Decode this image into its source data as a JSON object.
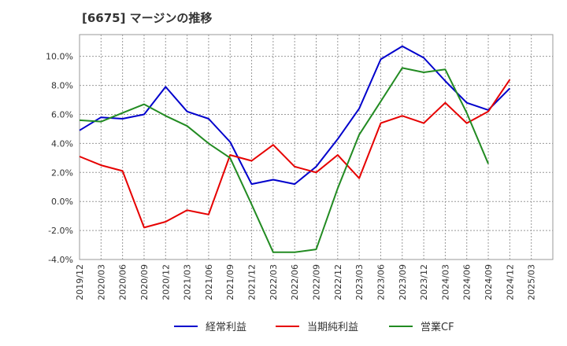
{
  "chart_data": {
    "type": "line",
    "title": "[6675]  マージンの推移",
    "xlabel": "",
    "ylabel": "",
    "x": [
      "2019/12",
      "2020/03",
      "2020/06",
      "2020/09",
      "2020/12",
      "2021/03",
      "2021/06",
      "2021/09",
      "2021/12",
      "2022/03",
      "2022/06",
      "2022/09",
      "2022/12",
      "2023/03",
      "2023/06",
      "2023/09",
      "2023/12",
      "2024/03",
      "2024/06",
      "2024/09",
      "2024/12",
      "2025/03"
    ],
    "y_ticks": [
      "-4.0%",
      "-2.0%",
      "0.0%",
      "2.0%",
      "4.0%",
      "6.0%",
      "8.0%",
      "10.0%"
    ],
    "ylim": [
      -4.0,
      11.5
    ],
    "grid": true,
    "legend_position": "bottom",
    "series": [
      {
        "name": "経常利益",
        "color": "#0000cc",
        "values": [
          4.9,
          5.8,
          5.7,
          6.0,
          7.9,
          6.2,
          5.7,
          4.1,
          1.2,
          1.5,
          1.2,
          2.4,
          4.3,
          6.4,
          9.8,
          10.7,
          9.9,
          8.3,
          6.8,
          6.3,
          7.8,
          null
        ]
      },
      {
        "name": "当期純利益",
        "color": "#e60000",
        "values": [
          3.1,
          2.5,
          2.1,
          -1.8,
          -1.4,
          -0.6,
          -0.9,
          3.2,
          2.8,
          3.9,
          2.4,
          2.0,
          3.2,
          1.6,
          5.4,
          5.9,
          5.4,
          6.8,
          5.4,
          6.2,
          8.4,
          null
        ]
      },
      {
        "name": "営業CF",
        "color": "#228b22",
        "values": [
          5.6,
          5.5,
          6.1,
          6.7,
          5.9,
          5.2,
          4.0,
          3.0,
          -0.2,
          -3.5,
          -3.5,
          -3.3,
          0.9,
          4.6,
          6.9,
          9.2,
          8.9,
          9.1,
          6.1,
          2.6,
          null,
          null
        ]
      }
    ]
  }
}
